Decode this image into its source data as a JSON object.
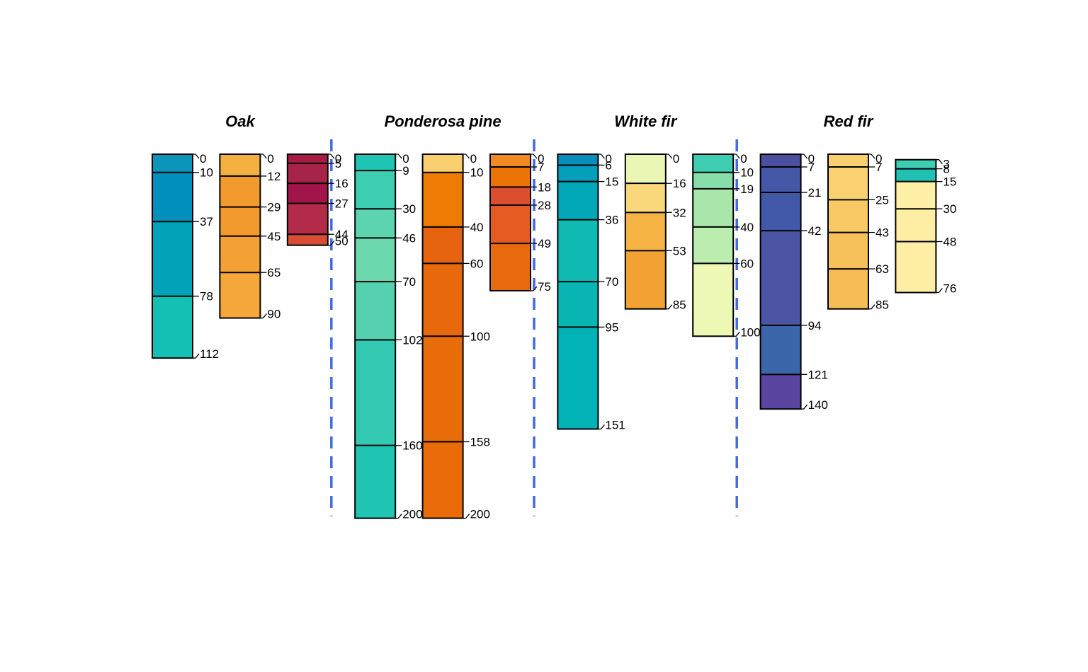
{
  "chart_data": {
    "type": "soil-profile",
    "groups": [
      {
        "title": "Oak",
        "profiles": [
          {
            "horizons": [
              {
                "top": 0,
                "bottom": 10,
                "color": "#0B95BB"
              },
              {
                "top": 10,
                "bottom": 37,
                "color": "#018FBB"
              },
              {
                "top": 37,
                "bottom": 78,
                "color": "#01A3B9"
              },
              {
                "top": 78,
                "bottom": 112,
                "color": "#14BFB3"
              }
            ]
          },
          {
            "horizons": [
              {
                "top": 0,
                "bottom": 12,
                "color": "#F5B042"
              },
              {
                "top": 12,
                "bottom": 29,
                "color": "#F29A2E"
              },
              {
                "top": 29,
                "bottom": 45,
                "color": "#F29A2E"
              },
              {
                "top": 45,
                "bottom": 65,
                "color": "#F3A134"
              },
              {
                "top": 65,
                "bottom": 90,
                "color": "#F5A73A"
              }
            ]
          },
          {
            "horizons": [
              {
                "top": 0,
                "bottom": 5,
                "color": "#A81C44"
              },
              {
                "top": 5,
                "bottom": 16,
                "color": "#A8234A"
              },
              {
                "top": 16,
                "bottom": 27,
                "color": "#A3154A"
              },
              {
                "top": 27,
                "bottom": 44,
                "color": "#B32B48"
              },
              {
                "top": 44,
                "bottom": 50,
                "color": "#D84D34"
              }
            ]
          }
        ]
      },
      {
        "title": "Ponderosa pine",
        "profiles": [
          {
            "horizons": [
              {
                "top": 0,
                "bottom": 9,
                "color": "#1FC4B2"
              },
              {
                "top": 9,
                "bottom": 30,
                "color": "#3DCDB0"
              },
              {
                "top": 30,
                "bottom": 46,
                "color": "#5CD4AE"
              },
              {
                "top": 46,
                "bottom": 70,
                "color": "#6CD8AE"
              },
              {
                "top": 70,
                "bottom": 102,
                "color": "#55D1AF"
              },
              {
                "top": 102,
                "bottom": 160,
                "color": "#34C9B2"
              },
              {
                "top": 160,
                "bottom": 200,
                "color": "#1FC4B2"
              }
            ]
          },
          {
            "horizons": [
              {
                "top": 0,
                "bottom": 10,
                "color": "#F9CF70"
              },
              {
                "top": 10,
                "bottom": 40,
                "color": "#EE7B02"
              },
              {
                "top": 40,
                "bottom": 60,
                "color": "#E66410"
              },
              {
                "top": 60,
                "bottom": 100,
                "color": "#E8690C"
              },
              {
                "top": 100,
                "bottom": 158,
                "color": "#E86C07"
              },
              {
                "top": 158,
                "bottom": 200,
                "color": "#E86B07"
              }
            ]
          },
          {
            "horizons": [
              {
                "top": 0,
                "bottom": 7,
                "color": "#F28A22"
              },
              {
                "top": 7,
                "bottom": 18,
                "color": "#EC7404"
              },
              {
                "top": 18,
                "bottom": 28,
                "color": "#DB4E2E"
              },
              {
                "top": 28,
                "bottom": 49,
                "color": "#E55B21"
              },
              {
                "top": 49,
                "bottom": 75,
                "color": "#E96A0C"
              }
            ]
          }
        ]
      },
      {
        "title": "White fir",
        "profiles": [
          {
            "horizons": [
              {
                "top": 0,
                "bottom": 6,
                "color": "#078EBB"
              },
              {
                "top": 6,
                "bottom": 15,
                "color": "#019FBA"
              },
              {
                "top": 15,
                "bottom": 36,
                "color": "#02A8B7"
              },
              {
                "top": 36,
                "bottom": 70,
                "color": "#10BAB3"
              },
              {
                "top": 70,
                "bottom": 95,
                "color": "#09B6B3"
              },
              {
                "top": 95,
                "bottom": 151,
                "color": "#01B3B5"
              }
            ]
          },
          {
            "horizons": [
              {
                "top": 0,
                "bottom": 16,
                "color": "#E9F6B4"
              },
              {
                "top": 16,
                "bottom": 32,
                "color": "#F9D87C"
              },
              {
                "top": 32,
                "bottom": 53,
                "color": "#F6B445"
              },
              {
                "top": 53,
                "bottom": 85,
                "color": "#F2A233"
              }
            ]
          },
          {
            "horizons": [
              {
                "top": 0,
                "bottom": 10,
                "color": "#3ECDB0"
              },
              {
                "top": 10,
                "bottom": 19,
                "color": "#87DEAB"
              },
              {
                "top": 19,
                "bottom": 40,
                "color": "#A8E6AA"
              },
              {
                "top": 40,
                "bottom": 60,
                "color": "#BAEDAE"
              },
              {
                "top": 60,
                "bottom": 100,
                "color": "#EDF8B5"
              }
            ]
          }
        ]
      },
      {
        "title": "Red fir",
        "profiles": [
          {
            "horizons": [
              {
                "top": 0,
                "bottom": 7,
                "color": "#4C4FA0"
              },
              {
                "top": 7,
                "bottom": 21,
                "color": "#4558A7"
              },
              {
                "top": 21,
                "bottom": 42,
                "color": "#4259A7"
              },
              {
                "top": 42,
                "bottom": 94,
                "color": "#4B55A3"
              },
              {
                "top": 94,
                "bottom": 121,
                "color": "#3B66A9"
              },
              {
                "top": 121,
                "bottom": 140,
                "color": "#5A46A0"
              }
            ]
          },
          {
            "horizons": [
              {
                "top": 0,
                "bottom": 7,
                "color": "#F9D06F"
              },
              {
                "top": 7,
                "bottom": 25,
                "color": "#F9D171"
              },
              {
                "top": 25,
                "bottom": 43,
                "color": "#F8C965"
              },
              {
                "top": 43,
                "bottom": 63,
                "color": "#F6C15A"
              },
              {
                "top": 63,
                "bottom": 85,
                "color": "#F6BC55"
              }
            ]
          },
          {
            "horizons": [
              {
                "top": 3,
                "bottom": 8,
                "color": "#3DCDB0"
              },
              {
                "top": 8,
                "bottom": 15,
                "color": "#1FC2B2"
              },
              {
                "top": 15,
                "bottom": 30,
                "color": "#FEF0A7"
              },
              {
                "top": 30,
                "bottom": 48,
                "color": "#FEEEA3"
              },
              {
                "top": 48,
                "bottom": 76,
                "color": "#FEEEA3"
              }
            ]
          }
        ]
      }
    ],
    "separator_color": "#4169E1",
    "ylim": [
      0,
      200
    ]
  }
}
